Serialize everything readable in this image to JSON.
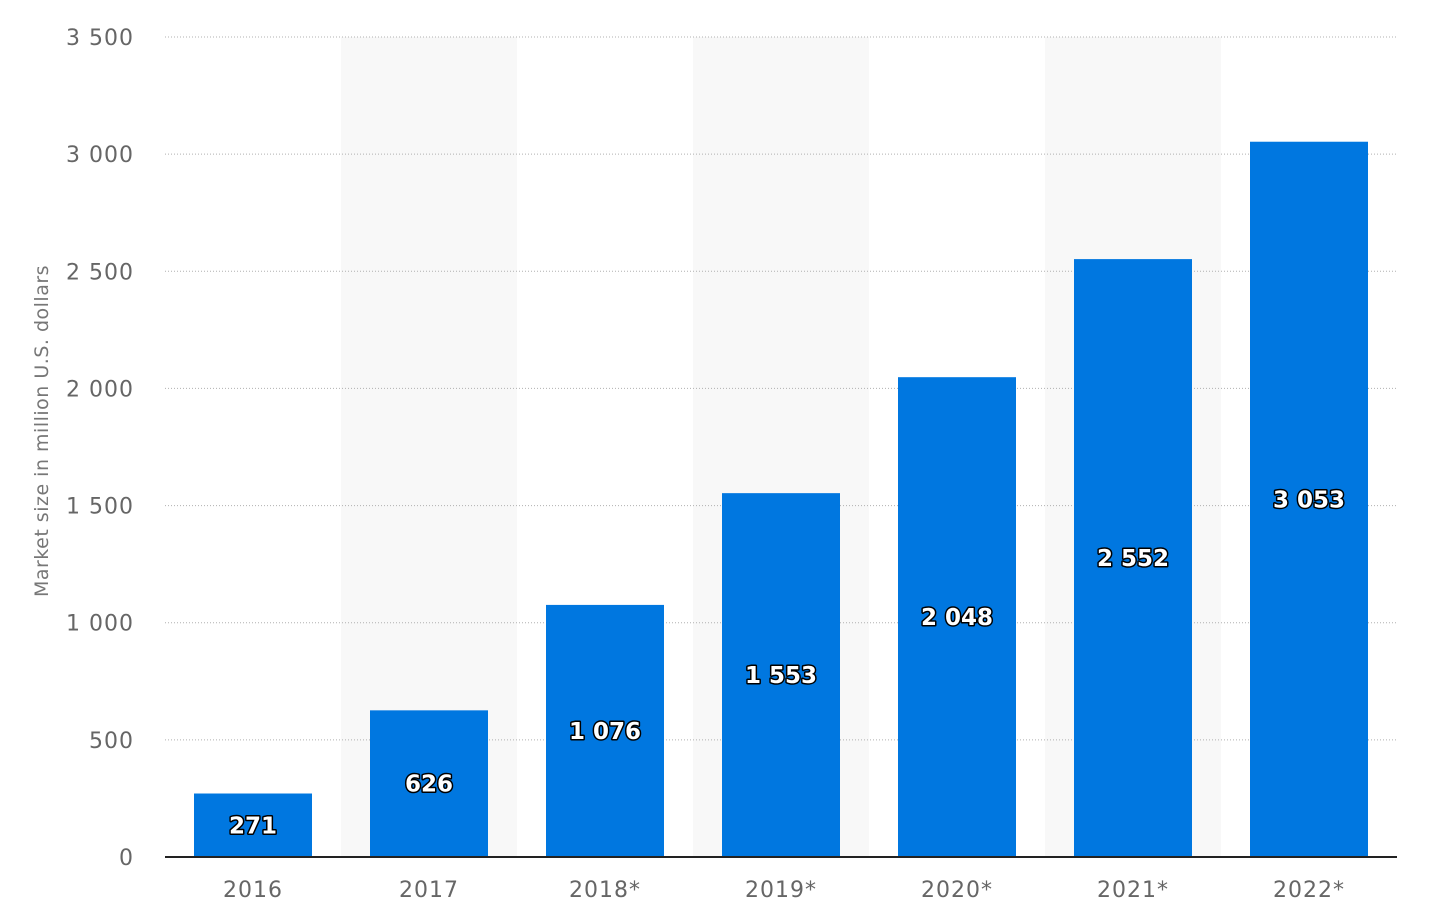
{
  "chart_data": {
    "type": "bar",
    "title": "",
    "xlabel": "",
    "ylabel": "Market size in million U.S. dollars",
    "categories": [
      "2016",
      "2017",
      "2018*",
      "2019*",
      "2020*",
      "2021*",
      "2022*"
    ],
    "values": [
      271,
      626,
      1076,
      1553,
      2048,
      2552,
      3053
    ],
    "value_labels": [
      "271",
      "626",
      "1 076",
      "1 553",
      "2 048",
      "2 552",
      "3 053"
    ],
    "ylim": [
      0,
      3500
    ],
    "yticks": [
      0,
      500,
      1000,
      1500,
      2000,
      2500,
      3000,
      3500
    ],
    "ytick_labels": [
      "0",
      "500",
      "1 000",
      "1 500",
      "2 000",
      "2 500",
      "3 000",
      "3 500"
    ],
    "grid": true,
    "legend": "none",
    "colors": {
      "bar": "#0077e0",
      "band": "#f8f8f8",
      "grid": "#b0b0b0",
      "axis": "#222222"
    }
  }
}
